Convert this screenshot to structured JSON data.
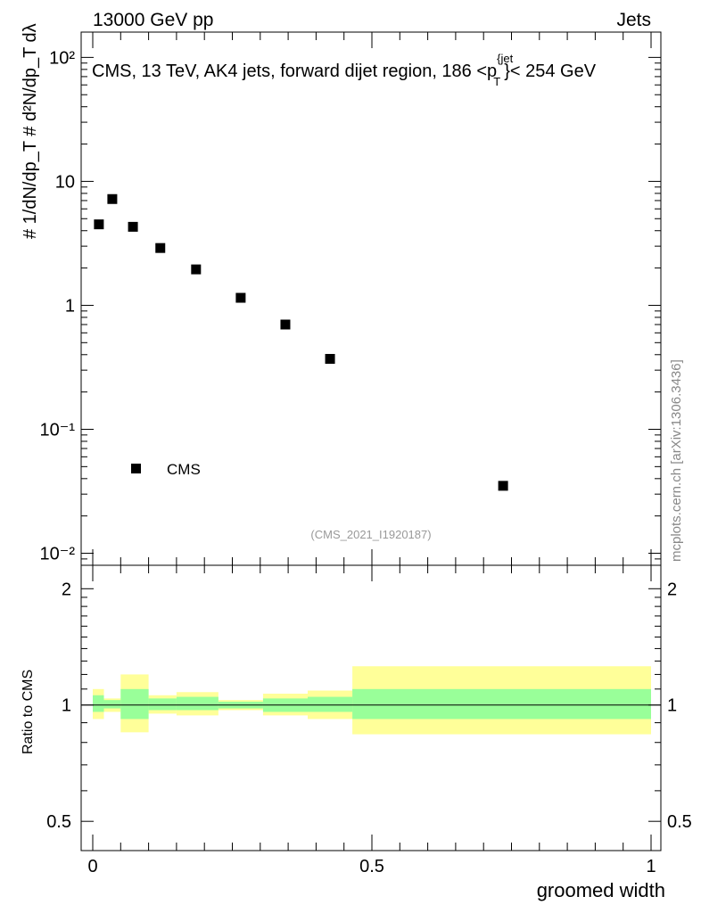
{
  "header": {
    "energy_label": "13000 GeV pp",
    "category_label": "Jets"
  },
  "chart_data": {
    "type": "scatter",
    "title": "CMS, 13 TeV, AK4 jets, forward dijet region, 186 <p",
    "title_sup": "{jet",
    "title_sub": "T",
    "title_suffix": "}< 254 GeV",
    "analysis_id": "(CMS_2021_I1920187)",
    "watermark": "mcplots.cern.ch [arXiv:1306.3436]",
    "xlabel": "groomed width",
    "ylabel_main": "#  1/dN/dp_T #  d²N/dp_T dλ",
    "ylabel_ratio": "Ratio to CMS",
    "x_ticks": [
      "0",
      "0.5",
      "1"
    ],
    "main_y_ticks": [
      "10⁻²",
      "10⁻¹",
      "1",
      "10",
      "10²"
    ],
    "ratio_y_ticks": [
      "0.5",
      "1",
      "2"
    ],
    "xlim": [
      0,
      1
    ],
    "main_ylim": [
      0.008,
      160
    ],
    "ratio_ylim": [
      0.42,
      2.3
    ],
    "legend": {
      "label": "CMS",
      "position": "lower-left"
    },
    "series": [
      {
        "name": "CMS",
        "x": [
          0.011,
          0.035,
          0.072,
          0.121,
          0.185,
          0.265,
          0.345,
          0.425,
          0.735
        ],
        "y": [
          4.5,
          7.2,
          4.3,
          2.9,
          1.95,
          1.15,
          0.7,
          0.37,
          0.035
        ]
      }
    ],
    "ratio_bands": [
      {
        "x0": 0.0,
        "x1": 0.02,
        "lo68": 0.96,
        "hi68": 1.06,
        "lo95": 0.92,
        "hi95": 1.1
      },
      {
        "x0": 0.02,
        "x1": 0.05,
        "lo68": 0.98,
        "hi68": 1.03,
        "lo95": 0.96,
        "hi95": 1.04
      },
      {
        "x0": 0.05,
        "x1": 0.1,
        "lo68": 0.92,
        "hi68": 1.1,
        "lo95": 0.85,
        "hi95": 1.2
      },
      {
        "x0": 0.1,
        "x1": 0.15,
        "lo68": 0.97,
        "hi68": 1.04,
        "lo95": 0.95,
        "hi95": 1.06
      },
      {
        "x0": 0.15,
        "x1": 0.225,
        "lo68": 0.97,
        "hi68": 1.05,
        "lo95": 0.94,
        "hi95": 1.08
      },
      {
        "x0": 0.225,
        "x1": 0.305,
        "lo68": 0.98,
        "hi68": 1.02,
        "lo95": 0.97,
        "hi95": 1.03
      },
      {
        "x0": 0.305,
        "x1": 0.385,
        "lo68": 0.96,
        "hi68": 1.04,
        "lo95": 0.94,
        "hi95": 1.07
      },
      {
        "x0": 0.385,
        "x1": 0.465,
        "lo68": 0.96,
        "hi68": 1.05,
        "lo95": 0.92,
        "hi95": 1.09
      },
      {
        "x0": 0.465,
        "x1": 1.0,
        "lo68": 0.92,
        "hi68": 1.1,
        "lo95": 0.84,
        "hi95": 1.26
      }
    ]
  }
}
